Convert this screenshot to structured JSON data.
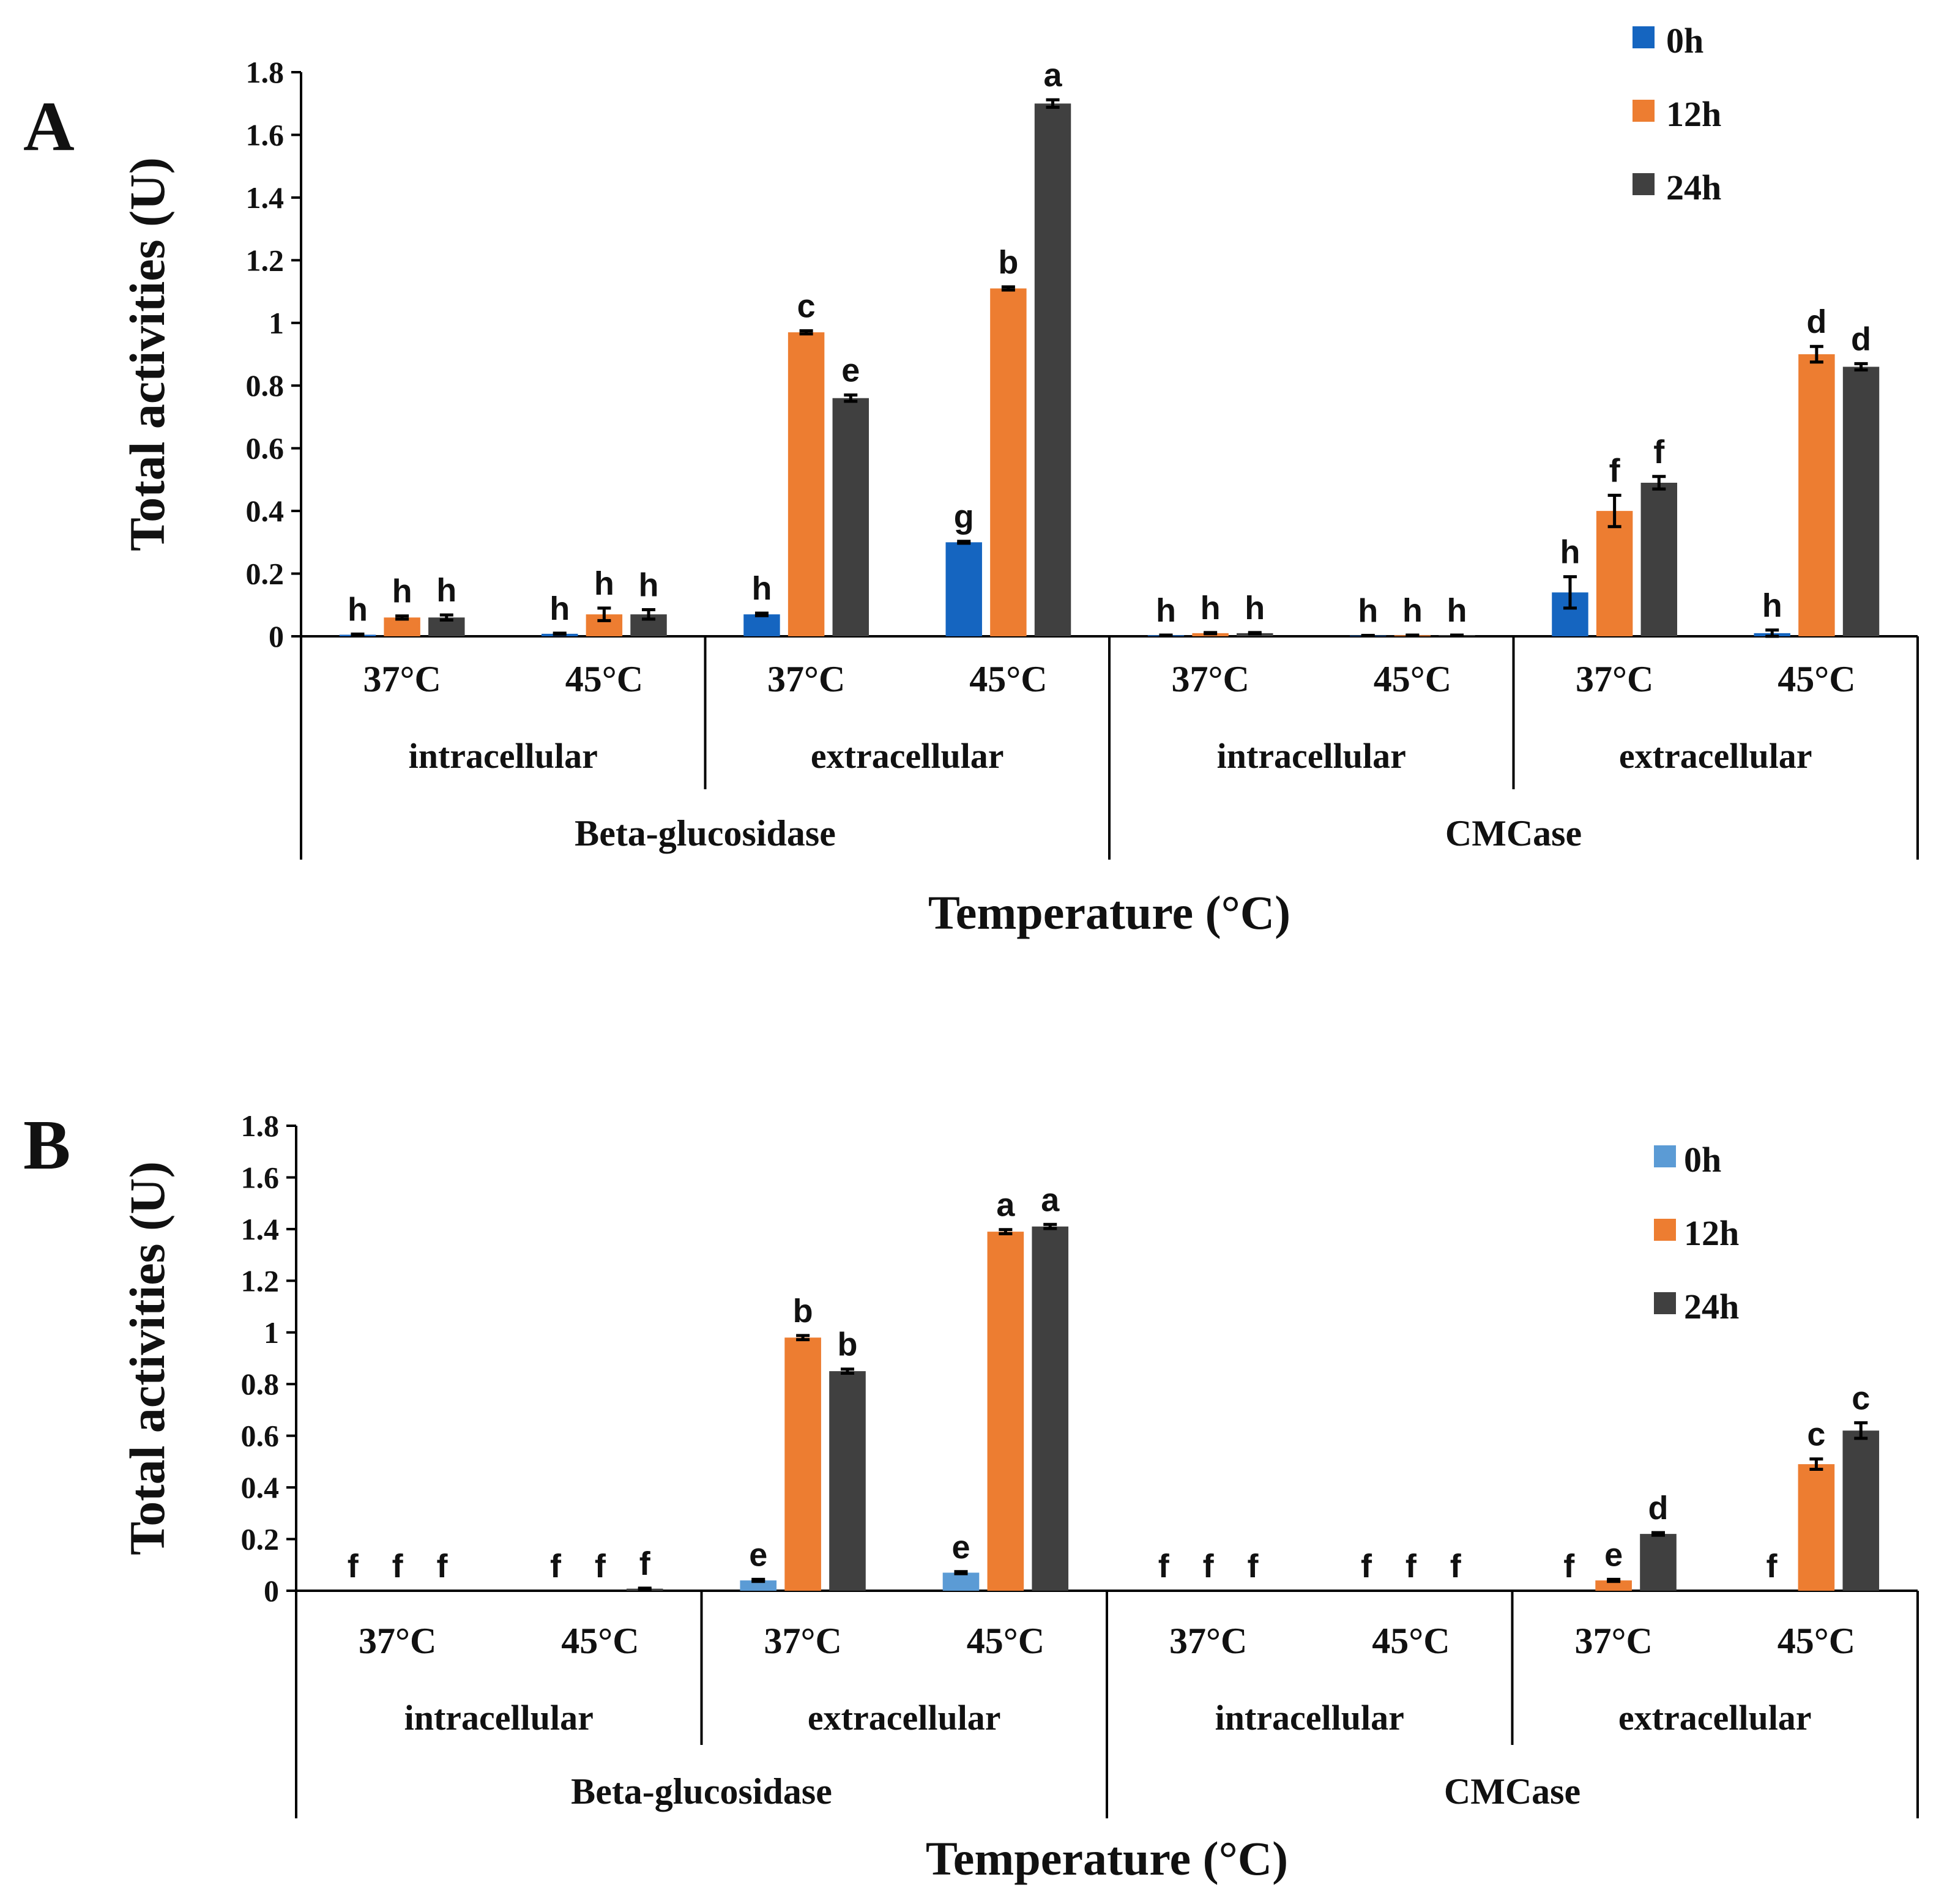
{
  "chart_data": [
    {
      "type": "bar",
      "panel_label": "A",
      "ylabel": "Total activities (U)",
      "xlabel": "Temperature (°C)",
      "ylim": [
        0,
        1.8
      ],
      "yticks": [
        "0",
        "0.2",
        "0.4",
        "0.6",
        "0.8",
        "1",
        "1.2",
        "1.4",
        "1.6",
        "1.8"
      ],
      "grid": false,
      "legend_position": "top-right",
      "categories": [
        "37°C",
        "45°C",
        "37°C",
        "45°C",
        "37°C",
        "45°C",
        "37°C",
        "45°C"
      ],
      "groups": [
        "intracellular",
        "extracellular",
        "intracellular",
        "extracellular"
      ],
      "enzymes": [
        "Beta-glucosidase",
        "CMCase"
      ],
      "colors": [
        "#1565c0",
        "#ed7d31",
        "#404040"
      ],
      "series": [
        {
          "name": "0h",
          "values": [
            0.005,
            0.008,
            0.07,
            0.3,
            0.003,
            0.002,
            0.14,
            0.01
          ],
          "errors": [
            0.002,
            0.002,
            0.004,
            0.003,
            0.001,
            0.001,
            0.05,
            0.01
          ],
          "letters": [
            "h",
            "h",
            "h",
            "g",
            "h",
            "h",
            "h",
            "h"
          ]
        },
        {
          "name": "12h",
          "values": [
            0.06,
            0.07,
            0.97,
            1.11,
            0.01,
            0.003,
            0.4,
            0.9
          ],
          "errors": [
            0.005,
            0.02,
            0.005,
            0.005,
            0.002,
            0.001,
            0.05,
            0.025
          ],
          "letters": [
            "h",
            "h",
            "c",
            "b",
            "h",
            "h",
            "f",
            "d"
          ]
        },
        {
          "name": "24h",
          "values": [
            0.06,
            0.07,
            0.76,
            1.7,
            0.01,
            0.003,
            0.49,
            0.86
          ],
          "errors": [
            0.008,
            0.015,
            0.01,
            0.012,
            0.002,
            0.001,
            0.02,
            0.01
          ],
          "letters": [
            "h",
            "h",
            "e",
            "a",
            "h",
            "h",
            "f",
            "d"
          ]
        }
      ]
    },
    {
      "type": "bar",
      "panel_label": "B",
      "ylabel": "Total activities (U)",
      "xlabel": "Temperature (°C)",
      "ylim": [
        0,
        1.8
      ],
      "yticks": [
        "0",
        "0.2",
        "0.4",
        "0.6",
        "0.8",
        "1",
        "1.2",
        "1.4",
        "1.6",
        "1.8"
      ],
      "grid": false,
      "legend_position": "top-right",
      "categories": [
        "37°C",
        "45°C",
        "37°C",
        "45°C",
        "37°C",
        "45°C",
        "37°C",
        "45°C"
      ],
      "groups": [
        "intracellular",
        "extracellular",
        "intracellular",
        "extracellular"
      ],
      "enzymes": [
        "Beta-glucosidase",
        "CMCase"
      ],
      "colors": [
        "#5b9bd5",
        "#ed7d31",
        "#404040"
      ],
      "series": [
        {
          "name": "0h",
          "values": [
            0.0,
            0.0,
            0.04,
            0.07,
            0.0,
            0.0,
            0.0,
            0.0
          ],
          "errors": [
            0,
            0,
            0.004,
            0.004,
            0,
            0,
            0,
            0
          ],
          "letters": [
            "f",
            "f",
            "e",
            "e",
            "f",
            "f",
            "f",
            "f"
          ]
        },
        {
          "name": "12h",
          "values": [
            0.0,
            0.0,
            0.98,
            1.39,
            0.0,
            0.0,
            0.04,
            0.49
          ],
          "errors": [
            0,
            0,
            0.008,
            0.008,
            0,
            0,
            0.004,
            0.02
          ],
          "letters": [
            "f",
            "f",
            "b",
            "a",
            "f",
            "f",
            "e",
            "c"
          ]
        },
        {
          "name": "24h",
          "values": [
            0.0,
            0.008,
            0.85,
            1.41,
            0.0,
            0.0,
            0.22,
            0.62
          ],
          "errors": [
            0,
            0.002,
            0.008,
            0.008,
            0,
            0,
            0.005,
            0.03
          ],
          "letters": [
            "f",
            "f",
            "b",
            "a",
            "f",
            "f",
            "d",
            "c"
          ]
        }
      ]
    }
  ]
}
